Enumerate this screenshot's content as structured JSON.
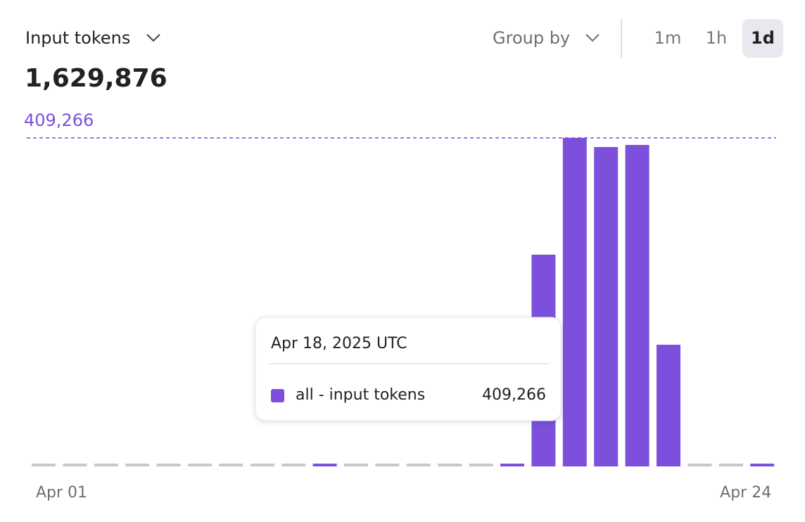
{
  "header": {
    "metric": "Input tokens",
    "group_by": "Group by",
    "intervals": [
      "1m",
      "1h",
      "1d"
    ],
    "active_interval": 2,
    "total": "1,629,876"
  },
  "chart_data": {
    "type": "bar",
    "categories": [
      "Apr 01",
      null,
      null,
      null,
      null,
      null,
      null,
      null,
      null,
      null,
      null,
      null,
      null,
      null,
      null,
      null,
      null,
      null,
      null,
      null,
      null,
      null,
      null,
      "Apr 24"
    ],
    "series": [
      {
        "name": "all - input tokens",
        "color": "#7c50dd",
        "values": [
          0,
          0,
          0,
          0,
          0,
          0,
          0,
          0,
          0,
          2300,
          0,
          0,
          0,
          0,
          0,
          2300,
          263800,
          409266,
          397900,
          400500,
          151600,
          0,
          0,
          2300
        ]
      }
    ],
    "ylim": [
      0,
      409266
    ],
    "max_line": {
      "value": 409266,
      "label": "409,266"
    },
    "zero_color": "#c9c6cc",
    "tooltip": {
      "title": "Apr 18, 2025 UTC",
      "index": 17,
      "series": "all - input tokens",
      "value": "409,266"
    }
  }
}
